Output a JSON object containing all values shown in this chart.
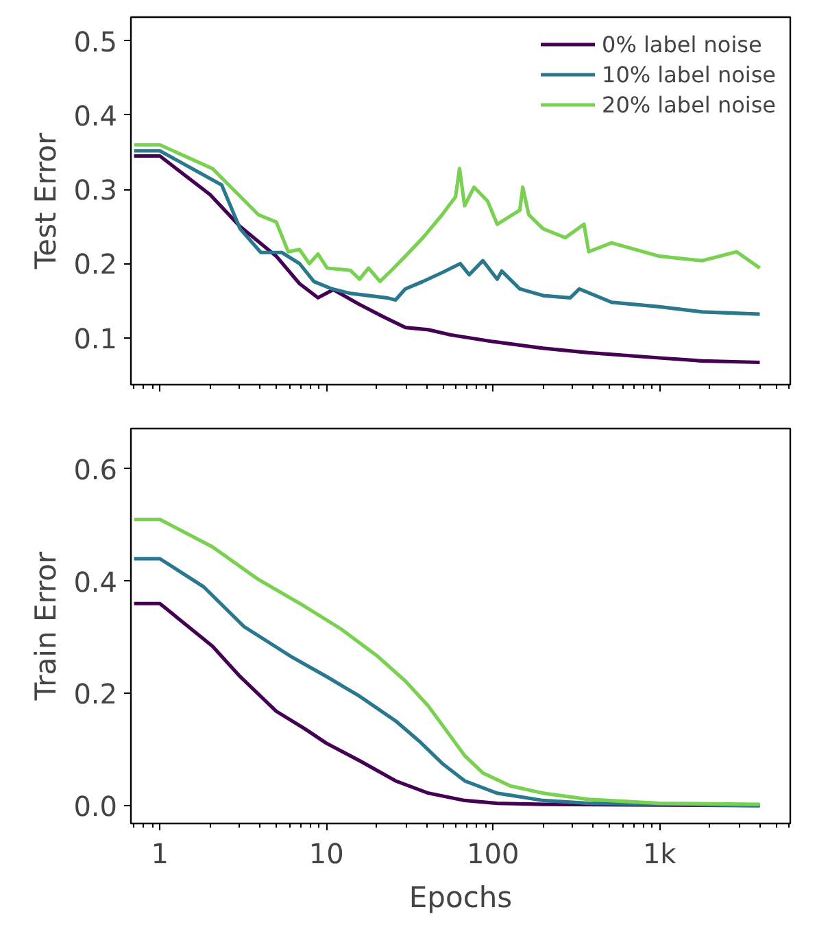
{
  "chart_data": [
    {
      "type": "line",
      "ylabel": "Test Error",
      "xlim": [
        0.67,
        6100
      ],
      "xticks": [
        {
          "value": 1,
          "label": null
        },
        {
          "value": 10,
          "label": null
        },
        {
          "value": 100,
          "label": null
        },
        {
          "value": 1000,
          "label": null
        }
      ],
      "ylim": [
        0.037,
        0.532
      ],
      "yticks": [
        0.1,
        0.2,
        0.3,
        0.4,
        0.5
      ],
      "log": "x",
      "tick_labels": "y",
      "grid": false,
      "legend": "top right",
      "line_style": "solid",
      "marker": "none",
      "series": [
        {
          "name": "0% label noise",
          "color": "#440154",
          "x": [
            0.7,
            1,
            2,
            3.03,
            5,
            6.9,
            8.9,
            11,
            15.8,
            21.7,
            29.8,
            40.9,
            56,
            100,
            200,
            376,
            1000,
            1800,
            4000
          ],
          "values": [
            0.345,
            0.345,
            0.293,
            0.25,
            0.21,
            0.173,
            0.154,
            0.165,
            0.145,
            0.129,
            0.114,
            0.111,
            0.104,
            0.095,
            0.086,
            0.08,
            0.073,
            0.069,
            0.067
          ]
        },
        {
          "name": "10% label noise",
          "color": "#2a788e",
          "x": [
            0.7,
            1,
            2.35,
            3.03,
            4.04,
            5.4,
            6.9,
            8.4,
            10.8,
            13.9,
            17.9,
            23,
            26,
            29.8,
            38,
            49.6,
            63.6,
            72,
            87,
            106,
            113,
            145,
            200,
            291,
            330,
            516,
            1000,
            1800,
            4000
          ],
          "values": [
            0.352,
            0.352,
            0.306,
            0.247,
            0.215,
            0.215,
            0.2,
            0.176,
            0.166,
            0.16,
            0.157,
            0.154,
            0.151,
            0.166,
            0.176,
            0.188,
            0.2,
            0.185,
            0.204,
            0.179,
            0.19,
            0.166,
            0.157,
            0.154,
            0.166,
            0.148,
            0.142,
            0.135,
            0.132
          ]
        },
        {
          "name": "20% label noise",
          "color": "#7ad151",
          "x": [
            0.7,
            1,
            2.07,
            3.9,
            5,
            5.9,
            6.9,
            7.9,
            8.9,
            10.1,
            13.9,
            15.8,
            17.9,
            21,
            24.6,
            29.8,
            38,
            49.6,
            59.6,
            63,
            67.6,
            77,
            93,
            106,
            145,
            151,
            164,
            200,
            272,
            352,
            376,
            516,
            1000,
            1800,
            2900,
            4000
          ],
          "values": [
            0.36,
            0.36,
            0.328,
            0.266,
            0.256,
            0.216,
            0.219,
            0.2,
            0.213,
            0.194,
            0.191,
            0.179,
            0.194,
            0.176,
            0.191,
            0.21,
            0.235,
            0.266,
            0.29,
            0.328,
            0.278,
            0.303,
            0.284,
            0.253,
            0.272,
            0.303,
            0.266,
            0.247,
            0.235,
            0.253,
            0.216,
            0.228,
            0.21,
            0.204,
            0.216,
            0.194
          ]
        }
      ]
    },
    {
      "type": "line",
      "xlabel": "Epochs",
      "ylabel": "Train Error",
      "xlim": [
        0.67,
        6100
      ],
      "xticks": [
        1,
        10,
        100,
        {
          "value": 1000,
          "label": "1k"
        }
      ],
      "ylim": [
        -0.032,
        0.672
      ],
      "yticks": [
        {
          "value": 0,
          "label": "0.0"
        },
        0.2,
        0.4,
        0.6
      ],
      "log": "x",
      "grid": false,
      "line_style": "solid",
      "marker": "none",
      "series": [
        {
          "color": "#440154",
          "x": [
            0.7,
            1,
            2.07,
            3.03,
            5,
            7.4,
            10,
            15.8,
            26,
            41,
            67.6,
            106,
            200,
            4000
          ],
          "values": [
            0.36,
            0.36,
            0.284,
            0.23,
            0.168,
            0.137,
            0.111,
            0.08,
            0.044,
            0.022,
            0.009,
            0.004,
            0.002,
            0.0
          ]
        },
        {
          "color": "#2a788e",
          "x": [
            0.7,
            1,
            1.83,
            3.2,
            6.1,
            10,
            15.8,
            26,
            36,
            49.6,
            67.6,
            106,
            200,
            376,
            4000
          ],
          "values": [
            0.44,
            0.44,
            0.39,
            0.319,
            0.266,
            0.23,
            0.195,
            0.151,
            0.115,
            0.075,
            0.044,
            0.022,
            0.009,
            0.004,
            0.0
          ]
        },
        {
          "color": "#7ad151",
          "x": [
            0.7,
            1,
            2.07,
            3.9,
            7.4,
            12.2,
            20.3,
            29.8,
            41,
            52.7,
            67.6,
            87,
            127,
            200,
            376,
            1000,
            4000
          ],
          "values": [
            0.51,
            0.51,
            0.461,
            0.403,
            0.355,
            0.315,
            0.266,
            0.222,
            0.177,
            0.133,
            0.089,
            0.058,
            0.035,
            0.022,
            0.011,
            0.004,
            0.002
          ]
        }
      ]
    }
  ]
}
